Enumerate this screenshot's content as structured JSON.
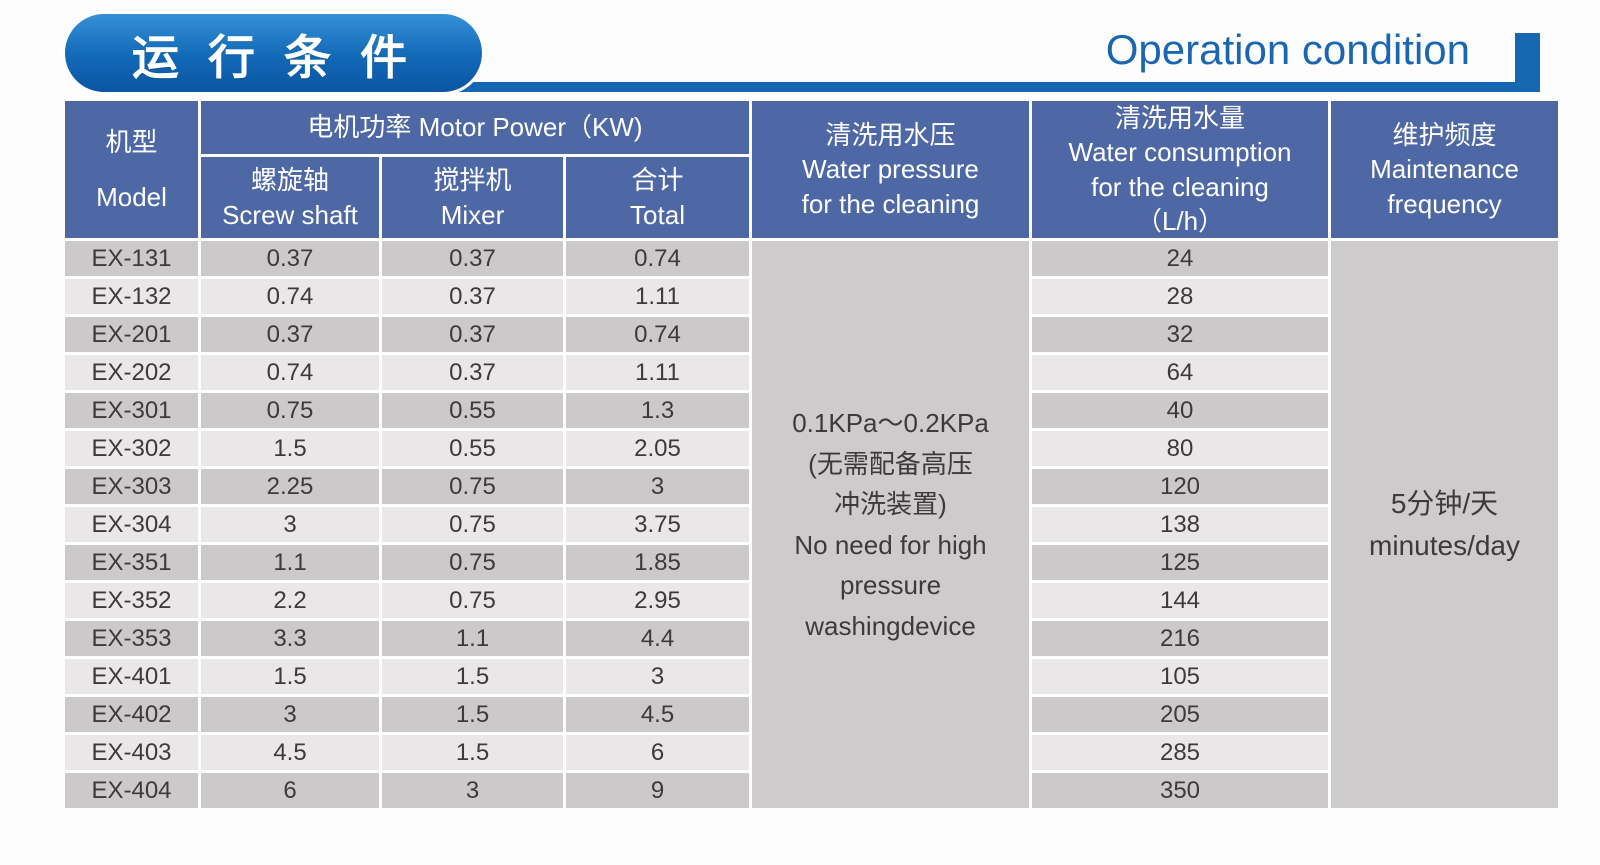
{
  "header": {
    "title_zh": "运 行 条 件",
    "title_en": "Operation condition"
  },
  "colors": {
    "accent_blue": "#1467b0",
    "header_blue": "#4d68a5",
    "row_dark": "#cbc9c9",
    "row_light": "#e9e7e7"
  },
  "table": {
    "columns": {
      "model_zh": "机型",
      "model_en": "Model",
      "motor_power_group": "电机功率  Motor Power（KW)",
      "screw_zh": "螺旋轴",
      "screw_en": "Screw shaft",
      "mixer_zh": "搅拌机",
      "mixer_en": "Mixer",
      "total_zh": "合计",
      "total_en": "Total",
      "pressure_zh": "清洗用水压",
      "pressure_en1": "Water pressure",
      "pressure_en2": "for the cleaning",
      "consumption_zh": "清洗用水量",
      "consumption_en1": "Water consumption",
      "consumption_en2": "for the cleaning",
      "consumption_unit": "（L/h）",
      "maintenance_zh": "维护频度",
      "maintenance_en1": "Maintenance",
      "maintenance_en2": "frequency"
    },
    "water_pressure_note": [
      "0.1KPa～0.2KPa",
      "(无需配备高压",
      "冲洗装置)",
      "No need for high",
      "pressure",
      "washingdevice"
    ],
    "maintenance_value": [
      "5分钟/天",
      "minutes/day"
    ],
    "rows": [
      {
        "model": "EX-131",
        "screw": "0.37",
        "mixer": "0.37",
        "total": "0.74",
        "water": "24"
      },
      {
        "model": "EX-132",
        "screw": "0.74",
        "mixer": "0.37",
        "total": "1.11",
        "water": "28"
      },
      {
        "model": "EX-201",
        "screw": "0.37",
        "mixer": "0.37",
        "total": "0.74",
        "water": "32"
      },
      {
        "model": "EX-202",
        "screw": "0.74",
        "mixer": "0.37",
        "total": "1.11",
        "water": "64"
      },
      {
        "model": "EX-301",
        "screw": "0.75",
        "mixer": "0.55",
        "total": "1.3",
        "water": "40"
      },
      {
        "model": "EX-302",
        "screw": "1.5",
        "mixer": "0.55",
        "total": "2.05",
        "water": "80"
      },
      {
        "model": "EX-303",
        "screw": "2.25",
        "mixer": "0.75",
        "total": "3",
        "water": "120"
      },
      {
        "model": "EX-304",
        "screw": "3",
        "mixer": "0.75",
        "total": "3.75",
        "water": "138"
      },
      {
        "model": "EX-351",
        "screw": "1.1",
        "mixer": "0.75",
        "total": "1.85",
        "water": "125"
      },
      {
        "model": "EX-352",
        "screw": "2.2",
        "mixer": "0.75",
        "total": "2.95",
        "water": "144"
      },
      {
        "model": "EX-353",
        "screw": "3.3",
        "mixer": "1.1",
        "total": "4.4",
        "water": "216"
      },
      {
        "model": "EX-401",
        "screw": "1.5",
        "mixer": "1.5",
        "total": "3",
        "water": "105"
      },
      {
        "model": "EX-402",
        "screw": "3",
        "mixer": "1.5",
        "total": "4.5",
        "water": "205"
      },
      {
        "model": "EX-403",
        "screw": "4.5",
        "mixer": "1.5",
        "total": "6",
        "water": "285"
      },
      {
        "model": "EX-404",
        "screw": "6",
        "mixer": "3",
        "total": "9",
        "water": "350"
      }
    ]
  }
}
